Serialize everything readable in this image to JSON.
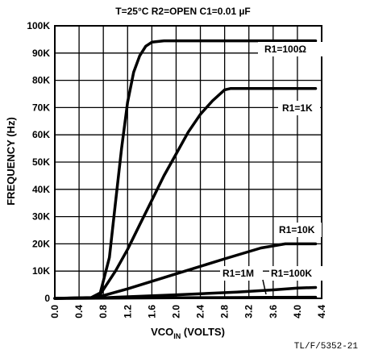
{
  "chart_data": {
    "type": "line",
    "title": "T=25°C  R2=OPEN   C1=0.01 µF",
    "xlabel": "VCO",
    "xlabel_sub": "IN",
    "xlabel_suffix": " (VOLTS)",
    "ylabel": "FREQUENCY (Hz)",
    "xlim": [
      0,
      4.4
    ],
    "ylim": [
      0,
      100000
    ],
    "grid": true,
    "x_ticks": [
      "0.0",
      "0.4",
      "0.8",
      "1.2",
      "1.6",
      "2.0",
      "2.4",
      "2.8",
      "3.2",
      "3.6",
      "4.0",
      "4.4"
    ],
    "y_ticks": [
      "0",
      "10K",
      "20K",
      "30K",
      "40K",
      "50K",
      "60K",
      "70K",
      "80K",
      "90K",
      "100K"
    ],
    "series": [
      {
        "name": "R1=100Ω",
        "x": [
          0,
          0.6,
          0.75,
          0.9,
          1.0,
          1.1,
          1.2,
          1.3,
          1.4,
          1.5,
          1.6,
          1.8,
          2.5,
          3.5,
          4.3
        ],
        "y": [
          0,
          300,
          2000,
          15000,
          35000,
          55000,
          72000,
          83000,
          89000,
          92500,
          94000,
          94500,
          94500,
          94500,
          94500
        ]
      },
      {
        "name": "R1=1K",
        "x": [
          0,
          0.6,
          0.75,
          1.0,
          1.2,
          1.4,
          1.6,
          1.8,
          2.0,
          2.2,
          2.4,
          2.6,
          2.8,
          2.9,
          3.2,
          4.3
        ],
        "y": [
          0,
          200,
          1500,
          10000,
          18000,
          27000,
          36000,
          45000,
          53000,
          61000,
          67500,
          72500,
          76500,
          77000,
          77000,
          77000
        ]
      },
      {
        "name": "R1=10K",
        "x": [
          0,
          0.6,
          0.8,
          1.2,
          2.0,
          2.8,
          3.4,
          3.8,
          4.3
        ],
        "y": [
          0,
          200,
          1000,
          3500,
          9000,
          14500,
          18500,
          20000,
          20000
        ]
      },
      {
        "name": "R1=100K",
        "x": [
          0,
          0.7,
          1.0,
          2.0,
          3.0,
          3.6,
          4.0,
          4.3
        ],
        "y": [
          0,
          100,
          400,
          1300,
          2300,
          3100,
          3800,
          4000
        ]
      },
      {
        "name": "R1=1M",
        "x": [
          0,
          0.8,
          2.0,
          3.0,
          3.5,
          4.3
        ],
        "y": [
          0,
          80,
          200,
          300,
          350,
          400
        ]
      }
    ],
    "labels": {
      "r100": "R1=100Ω",
      "r1k": "R1=1K",
      "r10k": "R1=10K",
      "r1m": "R1=1M",
      "r100k": "R1=100K"
    },
    "figure_id": "TL/F/5352-21"
  }
}
